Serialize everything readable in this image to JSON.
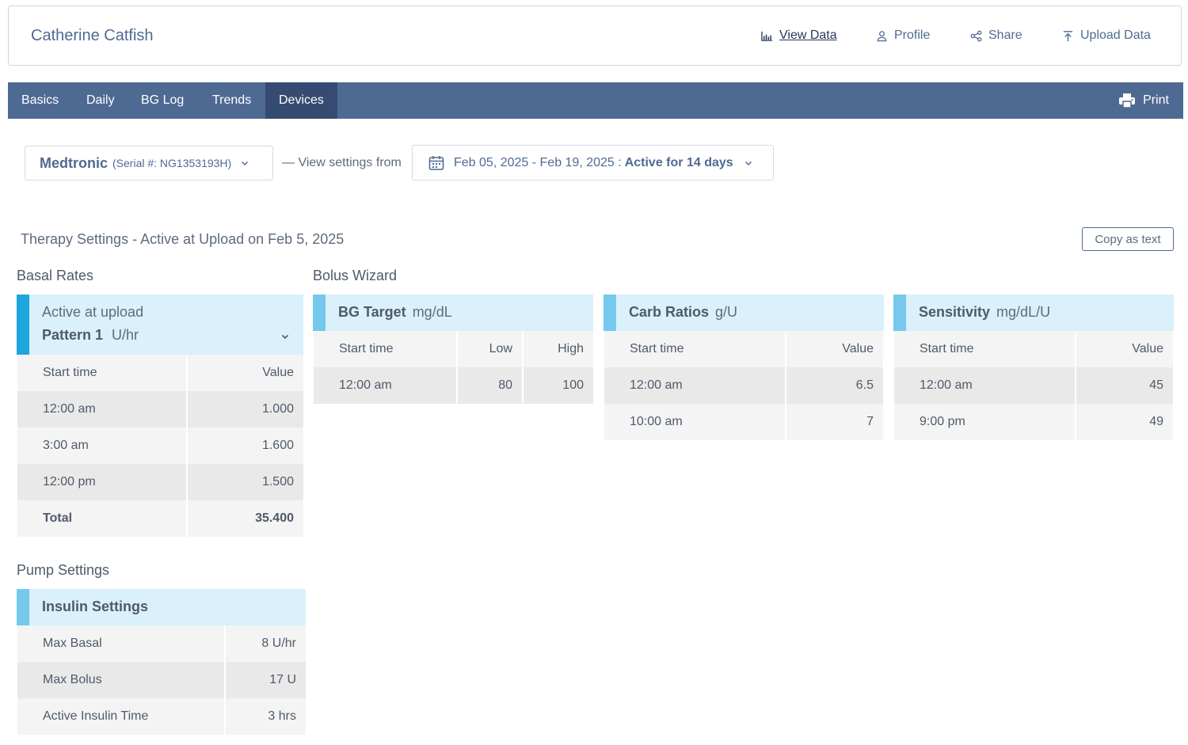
{
  "header": {
    "patient_name": "Catherine Catfish",
    "links": [
      {
        "label": "View Data",
        "icon": "bar-chart-icon",
        "active": true
      },
      {
        "label": "Profile",
        "icon": "person-icon"
      },
      {
        "label": "Share",
        "icon": "share-icon"
      },
      {
        "label": "Upload Data",
        "icon": "upload-icon"
      }
    ]
  },
  "nav": {
    "tabs": [
      "Basics",
      "Daily",
      "BG Log",
      "Trends",
      "Devices"
    ],
    "active_tab": "Devices",
    "print_label": "Print"
  },
  "device": {
    "name": "Medtronic",
    "serial": "(Serial #: NG1353193H)",
    "view_from": "— View settings from",
    "date_range": "Feb 05, 2025 - Feb 19, 2025 :",
    "active_for": "Active for 14 days"
  },
  "therapy": {
    "title": "Therapy Settings - Active at Upload on Feb 5, 2025",
    "copy_label": "Copy as text"
  },
  "basal": {
    "section_title": "Basal Rates",
    "header_line1": "Active at upload",
    "pattern": "Pattern 1",
    "unit": "U/hr",
    "columns": [
      "Start time",
      "Value"
    ],
    "rows": [
      [
        "12:00 am",
        "1.000"
      ],
      [
        "3:00 am",
        "1.600"
      ],
      [
        "12:00 pm",
        "1.500"
      ]
    ],
    "total_label": "Total",
    "total_value": "35.400"
  },
  "bolus": {
    "section_title": "Bolus Wizard",
    "bg_target": {
      "title": "BG Target",
      "unit": "mg/dL",
      "columns": [
        "Start time",
        "Low",
        "High"
      ],
      "rows": [
        [
          "12:00 am",
          "80",
          "100"
        ]
      ]
    },
    "carb_ratios": {
      "title": "Carb Ratios",
      "unit": "g/U",
      "columns": [
        "Start time",
        "Value"
      ],
      "rows": [
        [
          "12:00 am",
          "6.5"
        ],
        [
          "10:00 am",
          "7"
        ]
      ]
    },
    "sensitivity": {
      "title": "Sensitivity",
      "unit": "mg/dL/U",
      "columns": [
        "Start time",
        "Value"
      ],
      "rows": [
        [
          "12:00 am",
          "45"
        ],
        [
          "9:00 pm",
          "49"
        ]
      ]
    }
  },
  "pump": {
    "section_title": "Pump Settings",
    "card_title": "Insulin Settings",
    "rows": [
      [
        "Max Basal",
        "8 U/hr"
      ],
      [
        "Max Bolus",
        "17 U"
      ],
      [
        "Active Insulin Time",
        "3 hrs"
      ]
    ]
  },
  "colors": {
    "primary": "#4f6a92",
    "nav_active": "#354b71",
    "card_header": "#daf0fa",
    "accent": "#74c9ec",
    "accent_dark": "#1da6dd"
  }
}
